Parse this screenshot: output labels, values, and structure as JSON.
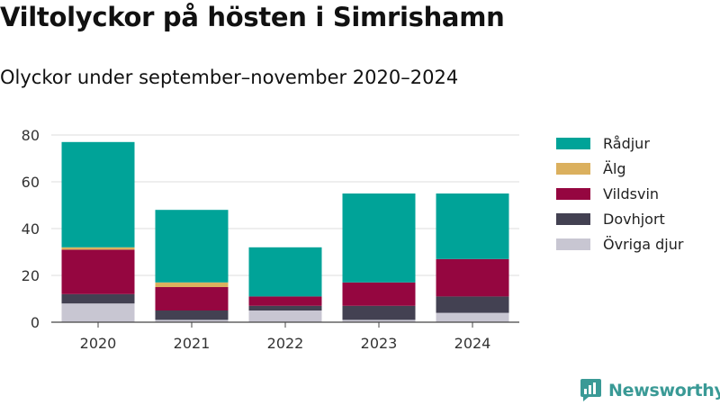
{
  "header": {
    "title": "Viltolyckor på hösten i Simrishamn",
    "subtitle": "Olyckor under september–november 2020–2024"
  },
  "brand": {
    "name": "Newsworthy",
    "icon": "newsworthy-logo-icon",
    "color": "#3a9a96"
  },
  "chart_data": {
    "type": "bar",
    "stacked": true,
    "title": "Viltolyckor på hösten i Simrishamn",
    "subtitle": "Olyckor under september–november 2020–2024",
    "xlabel": "",
    "ylabel": "",
    "ylim": [
      0,
      80
    ],
    "yticks": [
      0,
      20,
      40,
      60,
      80
    ],
    "grid": true,
    "legend_position": "right",
    "categories": [
      "2020",
      "2021",
      "2022",
      "2023",
      "2024"
    ],
    "series": [
      {
        "name": "Övriga djur",
        "color": "#c8c6d2",
        "values": [
          8,
          1,
          5,
          1,
          4
        ]
      },
      {
        "name": "Dovhjort",
        "color": "#434152",
        "values": [
          4,
          4,
          2,
          6,
          7
        ]
      },
      {
        "name": "Vildsvin",
        "color": "#950640",
        "values": [
          19,
          10,
          4,
          10,
          16
        ]
      },
      {
        "name": "Älg",
        "color": "#dbb05e",
        "values": [
          1,
          2,
          0,
          0,
          0
        ]
      },
      {
        "name": "Rådjur",
        "color": "#00a398",
        "values": [
          45,
          31,
          21,
          38,
          28
        ]
      }
    ],
    "legend_order": [
      "Rådjur",
      "Älg",
      "Vildsvin",
      "Dovhjort",
      "Övriga djur"
    ]
  }
}
